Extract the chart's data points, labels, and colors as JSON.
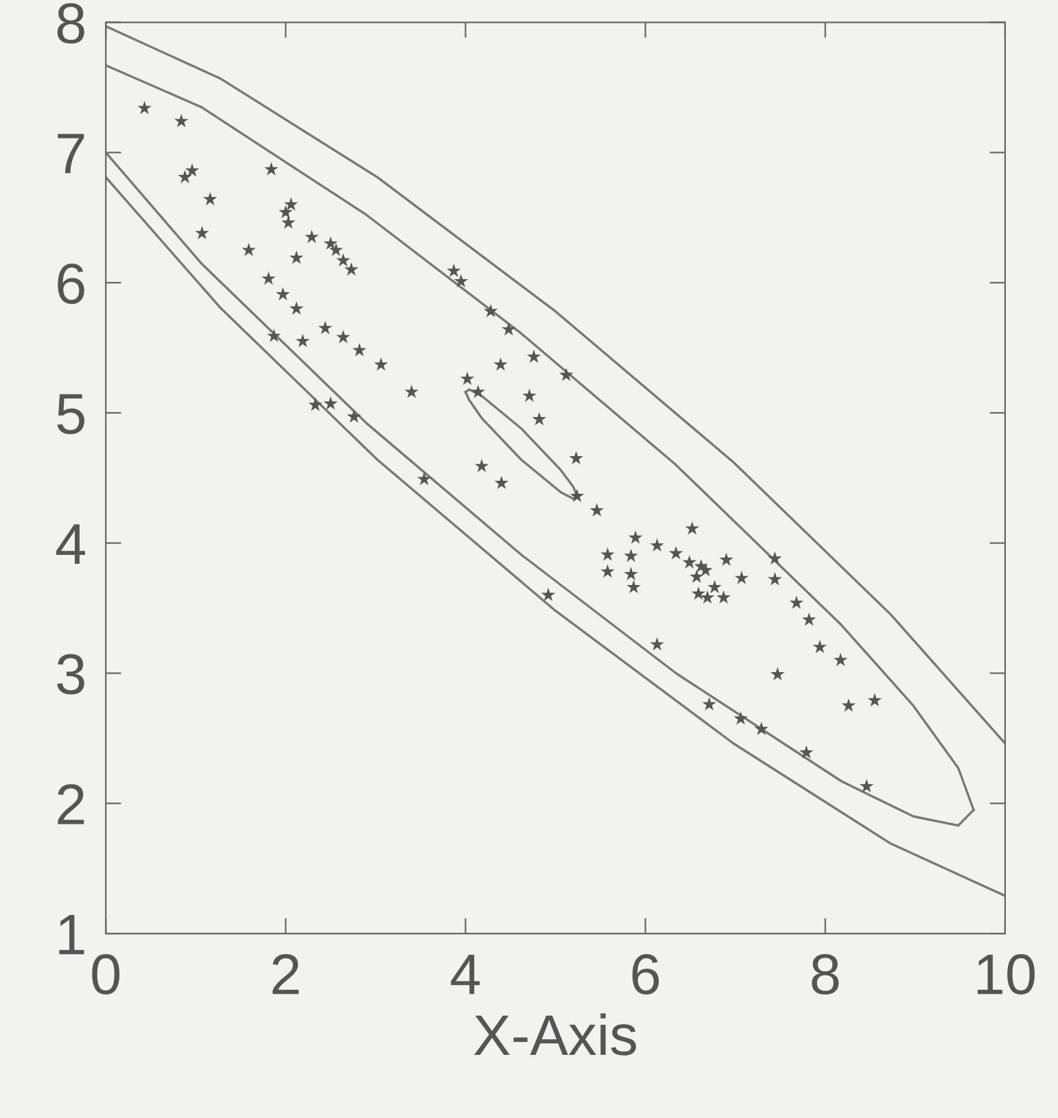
{
  "chart_data": {
    "type": "scatter",
    "xlabel": "X-Axis",
    "xlim": [
      0,
      10
    ],
    "ylim": [
      1,
      8
    ],
    "xticks": [
      0,
      2,
      4,
      6,
      8,
      10
    ],
    "yticks": [
      1,
      2,
      3,
      4,
      5,
      6,
      7,
      8
    ],
    "grid": false,
    "legend": false,
    "series": [
      {
        "color": "#555555",
        "marker": "star",
        "x": [
          0.43,
          0.84,
          0.88,
          0.96,
          1.16,
          1.07,
          1.84,
          1.59,
          2.0,
          2.06,
          2.03,
          2.12,
          2.29,
          2.5,
          2.56,
          2.64,
          2.73,
          1.81,
          1.97,
          2.12,
          2.44,
          2.64,
          2.82,
          3.06,
          1.87,
          2.19,
          2.33,
          2.5,
          2.76,
          3.4,
          3.54,
          3.87,
          3.95,
          4.28,
          4.48,
          4.39,
          4.76,
          4.02,
          4.14,
          4.71,
          4.82,
          5.12,
          4.18,
          4.4,
          5.23,
          5.24,
          5.46,
          5.58,
          5.58,
          5.84,
          5.84,
          5.87,
          5.89,
          6.13,
          6.34,
          6.52,
          6.49,
          6.62,
          6.57,
          6.67,
          6.59,
          6.69,
          6.77,
          6.87,
          6.9,
          7.07,
          7.44,
          7.44,
          7.68,
          7.82,
          7.94,
          8.17,
          8.26,
          8.55,
          7.47,
          6.13,
          4.92,
          6.71,
          7.06,
          7.29,
          7.79,
          8.46
        ],
        "values": [
          7.34,
          7.24,
          6.81,
          6.86,
          6.64,
          6.38,
          6.87,
          6.25,
          6.54,
          6.6,
          6.46,
          6.19,
          6.35,
          6.3,
          6.25,
          6.17,
          6.1,
          6.03,
          5.91,
          5.8,
          5.65,
          5.58,
          5.48,
          5.37,
          5.59,
          5.55,
          5.06,
          5.07,
          4.97,
          5.16,
          4.49,
          6.09,
          6.01,
          5.78,
          5.64,
          5.37,
          5.43,
          5.26,
          5.16,
          5.13,
          4.95,
          5.29,
          4.59,
          4.46,
          4.65,
          4.36,
          4.25,
          3.91,
          3.78,
          3.9,
          3.76,
          3.66,
          4.04,
          3.98,
          3.92,
          4.11,
          3.85,
          3.82,
          3.74,
          3.79,
          3.61,
          3.58,
          3.66,
          3.58,
          3.87,
          3.73,
          3.88,
          3.72,
          3.54,
          3.41,
          3.2,
          3.1,
          2.75,
          2.79,
          2.99,
          3.22,
          3.6,
          2.76,
          2.65,
          2.57,
          2.39,
          2.13
        ]
      },
      {
        "type": "line",
        "color": "#777777",
        "marker": "none",
        "line_style": "solid",
        "x": [
          4.0,
          4.04,
          4.18,
          4.62,
          5.06,
          5.2,
          5.24
        ],
        "values": [
          5.16,
          5.18,
          5.13,
          4.88,
          4.56,
          4.43,
          4.36
        ]
      },
      {
        "type": "line",
        "color": "#777777",
        "marker": "none",
        "line_style": "solid",
        "x": [
          4.0,
          4.04,
          4.18,
          4.62,
          5.06,
          5.2,
          5.24
        ],
        "values": [
          5.16,
          5.1,
          4.96,
          4.64,
          4.39,
          4.34,
          4.36
        ]
      },
      {
        "type": "line",
        "color": "#777777",
        "marker": "none",
        "line_style": "solid",
        "x": [
          0,
          1.06,
          2.9,
          4.62,
          6.34,
          8.18,
          8.98,
          9.48,
          9.65
        ],
        "values": [
          7.0,
          6.15,
          4.92,
          3.91,
          3.0,
          2.17,
          1.9,
          1.83,
          1.95
        ]
      },
      {
        "type": "line",
        "color": "#777777",
        "marker": "none",
        "line_style": "solid",
        "x": [
          0,
          1.06,
          2.9,
          4.62,
          6.34,
          8.18,
          8.98,
          9.48,
          9.65
        ],
        "values": [
          7.67,
          7.35,
          6.52,
          5.61,
          4.6,
          3.37,
          2.75,
          2.27,
          1.95
        ]
      },
      {
        "type": "line",
        "color": "#777777",
        "marker": "none",
        "line_style": "solid",
        "x": [
          0,
          1.27,
          3.02,
          5.0,
          6.98,
          8.73,
          10
        ],
        "values": [
          6.81,
          5.81,
          4.64,
          3.48,
          2.46,
          1.69,
          1.29
        ]
      },
      {
        "type": "line",
        "color": "#777777",
        "marker": "none",
        "line_style": "solid",
        "x": [
          0,
          1.27,
          3.02,
          5.0,
          6.98,
          8.73,
          10
        ],
        "values": [
          7.97,
          7.57,
          6.81,
          5.78,
          4.62,
          3.45,
          2.46
        ]
      }
    ]
  }
}
